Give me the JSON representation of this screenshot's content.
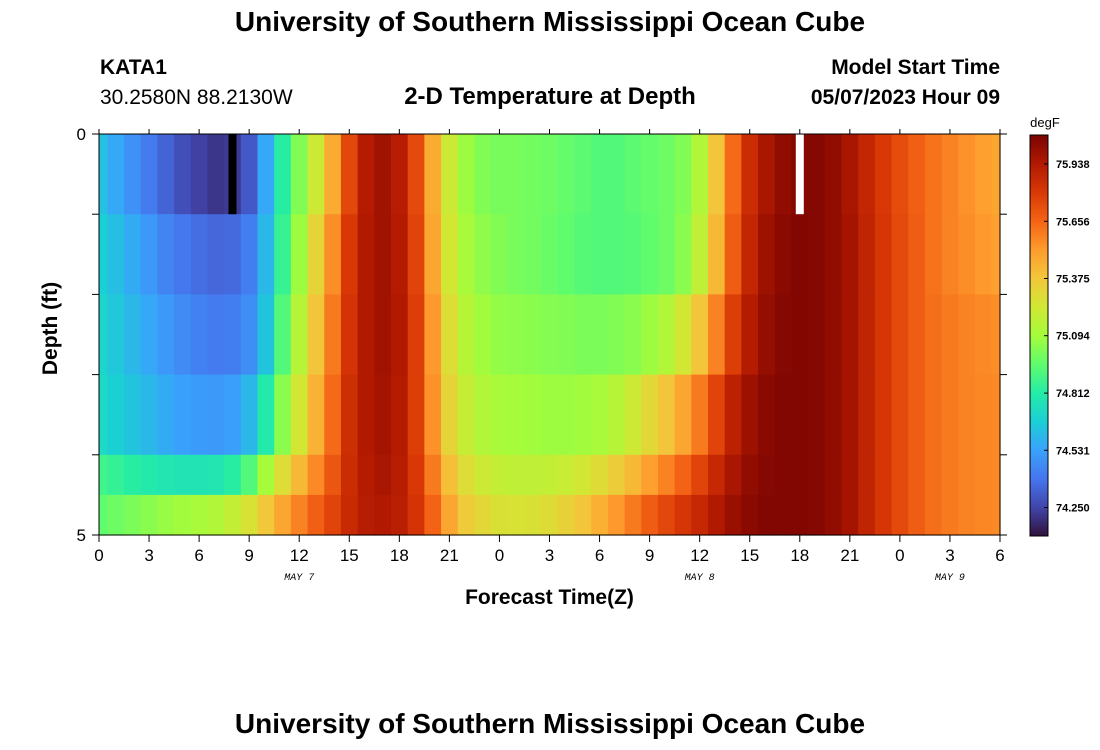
{
  "header": {
    "title": "University of Southern Mississippi Ocean Cube",
    "station": "KATA1",
    "coordinates": "30.2580N  88.2130W",
    "subtitle": "2-D Temperature at Depth",
    "model_start_label": "Model Start Time",
    "model_start_value": "05/07/2023 Hour 09"
  },
  "footer": {
    "title": "University of Southern Mississippi Ocean Cube"
  },
  "chart_data": {
    "type": "heatmap",
    "title": "2-D Temperature at Depth",
    "xlabel": "Forecast Time(Z)",
    "ylabel": "Depth (ft)",
    "x_tick_labels": [
      "0",
      "3",
      "6",
      "9",
      "12",
      "15",
      "18",
      "21",
      "0",
      "3",
      "6",
      "9",
      "12",
      "15",
      "18",
      "21",
      "0",
      "3",
      "6"
    ],
    "date_labels": [
      {
        "label": "MAY 7",
        "hour_index": 12
      },
      {
        "label": "MAY 8",
        "hour_index": 36
      },
      {
        "label": "MAY 9",
        "hour_index": 51
      }
    ],
    "y_tick_labels": [
      "0",
      "5"
    ],
    "ylim": [
      0,
      5
    ],
    "colorbar": {
      "unit": "degF",
      "min": 74.11,
      "max": 76.08,
      "ticks": [
        75.938,
        75.656,
        75.375,
        75.094,
        74.812,
        74.531,
        74.25
      ],
      "colors": [
        "#30123b",
        "#4145ab",
        "#4675ed",
        "#39a2fc",
        "#1bcfd4",
        "#24eca6",
        "#61fc6c",
        "#a4fc3b",
        "#d1e834",
        "#f3c63a",
        "#fe9b2d",
        "#f36315",
        "#d93806",
        "#b11901",
        "#7a0402"
      ]
    },
    "markers": [
      {
        "hour_index": 8,
        "color": "#000000"
      },
      {
        "hour_index": 42,
        "color": "#ffffff"
      }
    ],
    "depth_layers": [
      0,
      1,
      2,
      3,
      4,
      4.5
    ],
    "temperatures": [
      [
        74.63,
        74.55,
        74.48,
        74.41,
        74.34,
        74.28,
        74.24,
        74.21,
        74.22,
        74.31,
        74.55,
        74.82,
        75.02,
        75.22,
        75.46,
        75.75,
        75.93,
        75.98,
        75.92,
        75.74,
        75.46,
        75.22,
        75.08,
        75.02,
        75.0,
        75.0,
        74.99,
        74.98,
        74.96,
        74.94,
        74.92,
        74.92,
        74.94,
        74.96,
        74.98,
        75.02,
        75.14,
        75.38,
        75.64,
        75.85,
        75.96,
        76.02,
        76.05,
        76.05,
        76.02,
        75.96,
        75.88,
        75.8,
        75.73,
        75.67,
        75.62,
        75.58,
        75.54,
        75.5,
        75.48
      ],
      [
        74.68,
        74.62,
        74.56,
        74.5,
        74.44,
        74.4,
        74.37,
        74.35,
        74.36,
        74.42,
        74.6,
        74.86,
        75.08,
        75.32,
        75.55,
        75.8,
        75.94,
        75.98,
        75.93,
        75.76,
        75.48,
        75.24,
        75.11,
        75.05,
        75.02,
        75.0,
        74.99,
        74.97,
        74.95,
        74.93,
        74.92,
        74.92,
        74.93,
        74.95,
        74.98,
        75.04,
        75.18,
        75.42,
        75.68,
        75.88,
        75.99,
        76.04,
        76.06,
        76.05,
        76.02,
        75.97,
        75.89,
        75.81,
        75.74,
        75.68,
        75.62,
        75.58,
        75.55,
        75.52,
        75.5
      ],
      [
        74.7,
        74.65,
        74.6,
        74.55,
        74.5,
        74.46,
        74.43,
        74.41,
        74.42,
        74.47,
        74.64,
        74.92,
        75.15,
        75.38,
        75.6,
        75.82,
        75.94,
        75.98,
        75.94,
        75.78,
        75.52,
        75.28,
        75.15,
        75.09,
        75.06,
        75.05,
        75.04,
        75.03,
        75.02,
        75.01,
        75.01,
        75.02,
        75.04,
        75.08,
        75.14,
        75.24,
        75.38,
        75.58,
        75.78,
        75.93,
        76.01,
        76.05,
        76.06,
        76.05,
        76.02,
        75.97,
        75.89,
        75.81,
        75.74,
        75.68,
        75.63,
        75.6,
        75.58,
        75.56,
        75.55
      ],
      [
        74.72,
        74.68,
        74.64,
        74.6,
        74.56,
        74.53,
        74.51,
        74.5,
        74.52,
        74.6,
        74.8,
        75.04,
        75.24,
        75.44,
        75.64,
        75.84,
        75.94,
        75.97,
        75.93,
        75.78,
        75.54,
        75.32,
        75.2,
        75.14,
        75.11,
        75.1,
        75.09,
        75.08,
        75.08,
        75.09,
        75.11,
        75.15,
        75.22,
        75.3,
        75.38,
        75.48,
        75.6,
        75.76,
        75.9,
        75.99,
        76.04,
        76.06,
        76.06,
        76.05,
        76.02,
        75.97,
        75.89,
        75.81,
        75.74,
        75.68,
        75.63,
        75.6,
        75.58,
        75.57,
        75.56
      ],
      [
        74.88,
        74.85,
        74.82,
        74.8,
        74.78,
        74.77,
        74.77,
        74.78,
        74.82,
        74.92,
        75.1,
        75.28,
        75.42,
        75.56,
        75.7,
        75.85,
        75.93,
        75.96,
        75.92,
        75.8,
        75.6,
        75.4,
        75.28,
        75.22,
        75.19,
        75.18,
        75.18,
        75.19,
        75.21,
        75.24,
        75.29,
        75.35,
        75.42,
        75.5,
        75.58,
        75.66,
        75.76,
        75.87,
        75.96,
        76.02,
        76.05,
        76.06,
        76.06,
        76.05,
        76.02,
        75.97,
        75.89,
        75.81,
        75.74,
        75.68,
        75.63,
        75.6,
        75.58,
        75.57,
        75.56
      ],
      [
        74.95,
        74.98,
        75.01,
        75.04,
        75.07,
        75.09,
        75.11,
        75.14,
        75.19,
        75.26,
        75.37,
        75.48,
        75.58,
        75.67,
        75.76,
        75.86,
        75.92,
        75.94,
        75.91,
        75.82,
        75.66,
        75.48,
        75.36,
        75.3,
        75.27,
        75.26,
        75.27,
        75.29,
        75.33,
        75.38,
        75.45,
        75.52,
        75.6,
        75.68,
        75.75,
        75.81,
        75.87,
        75.94,
        76.0,
        76.04,
        76.06,
        76.06,
        76.06,
        76.05,
        76.02,
        75.97,
        75.89,
        75.81,
        75.74,
        75.68,
        75.63,
        75.6,
        75.58,
        75.57,
        75.56
      ]
    ]
  }
}
